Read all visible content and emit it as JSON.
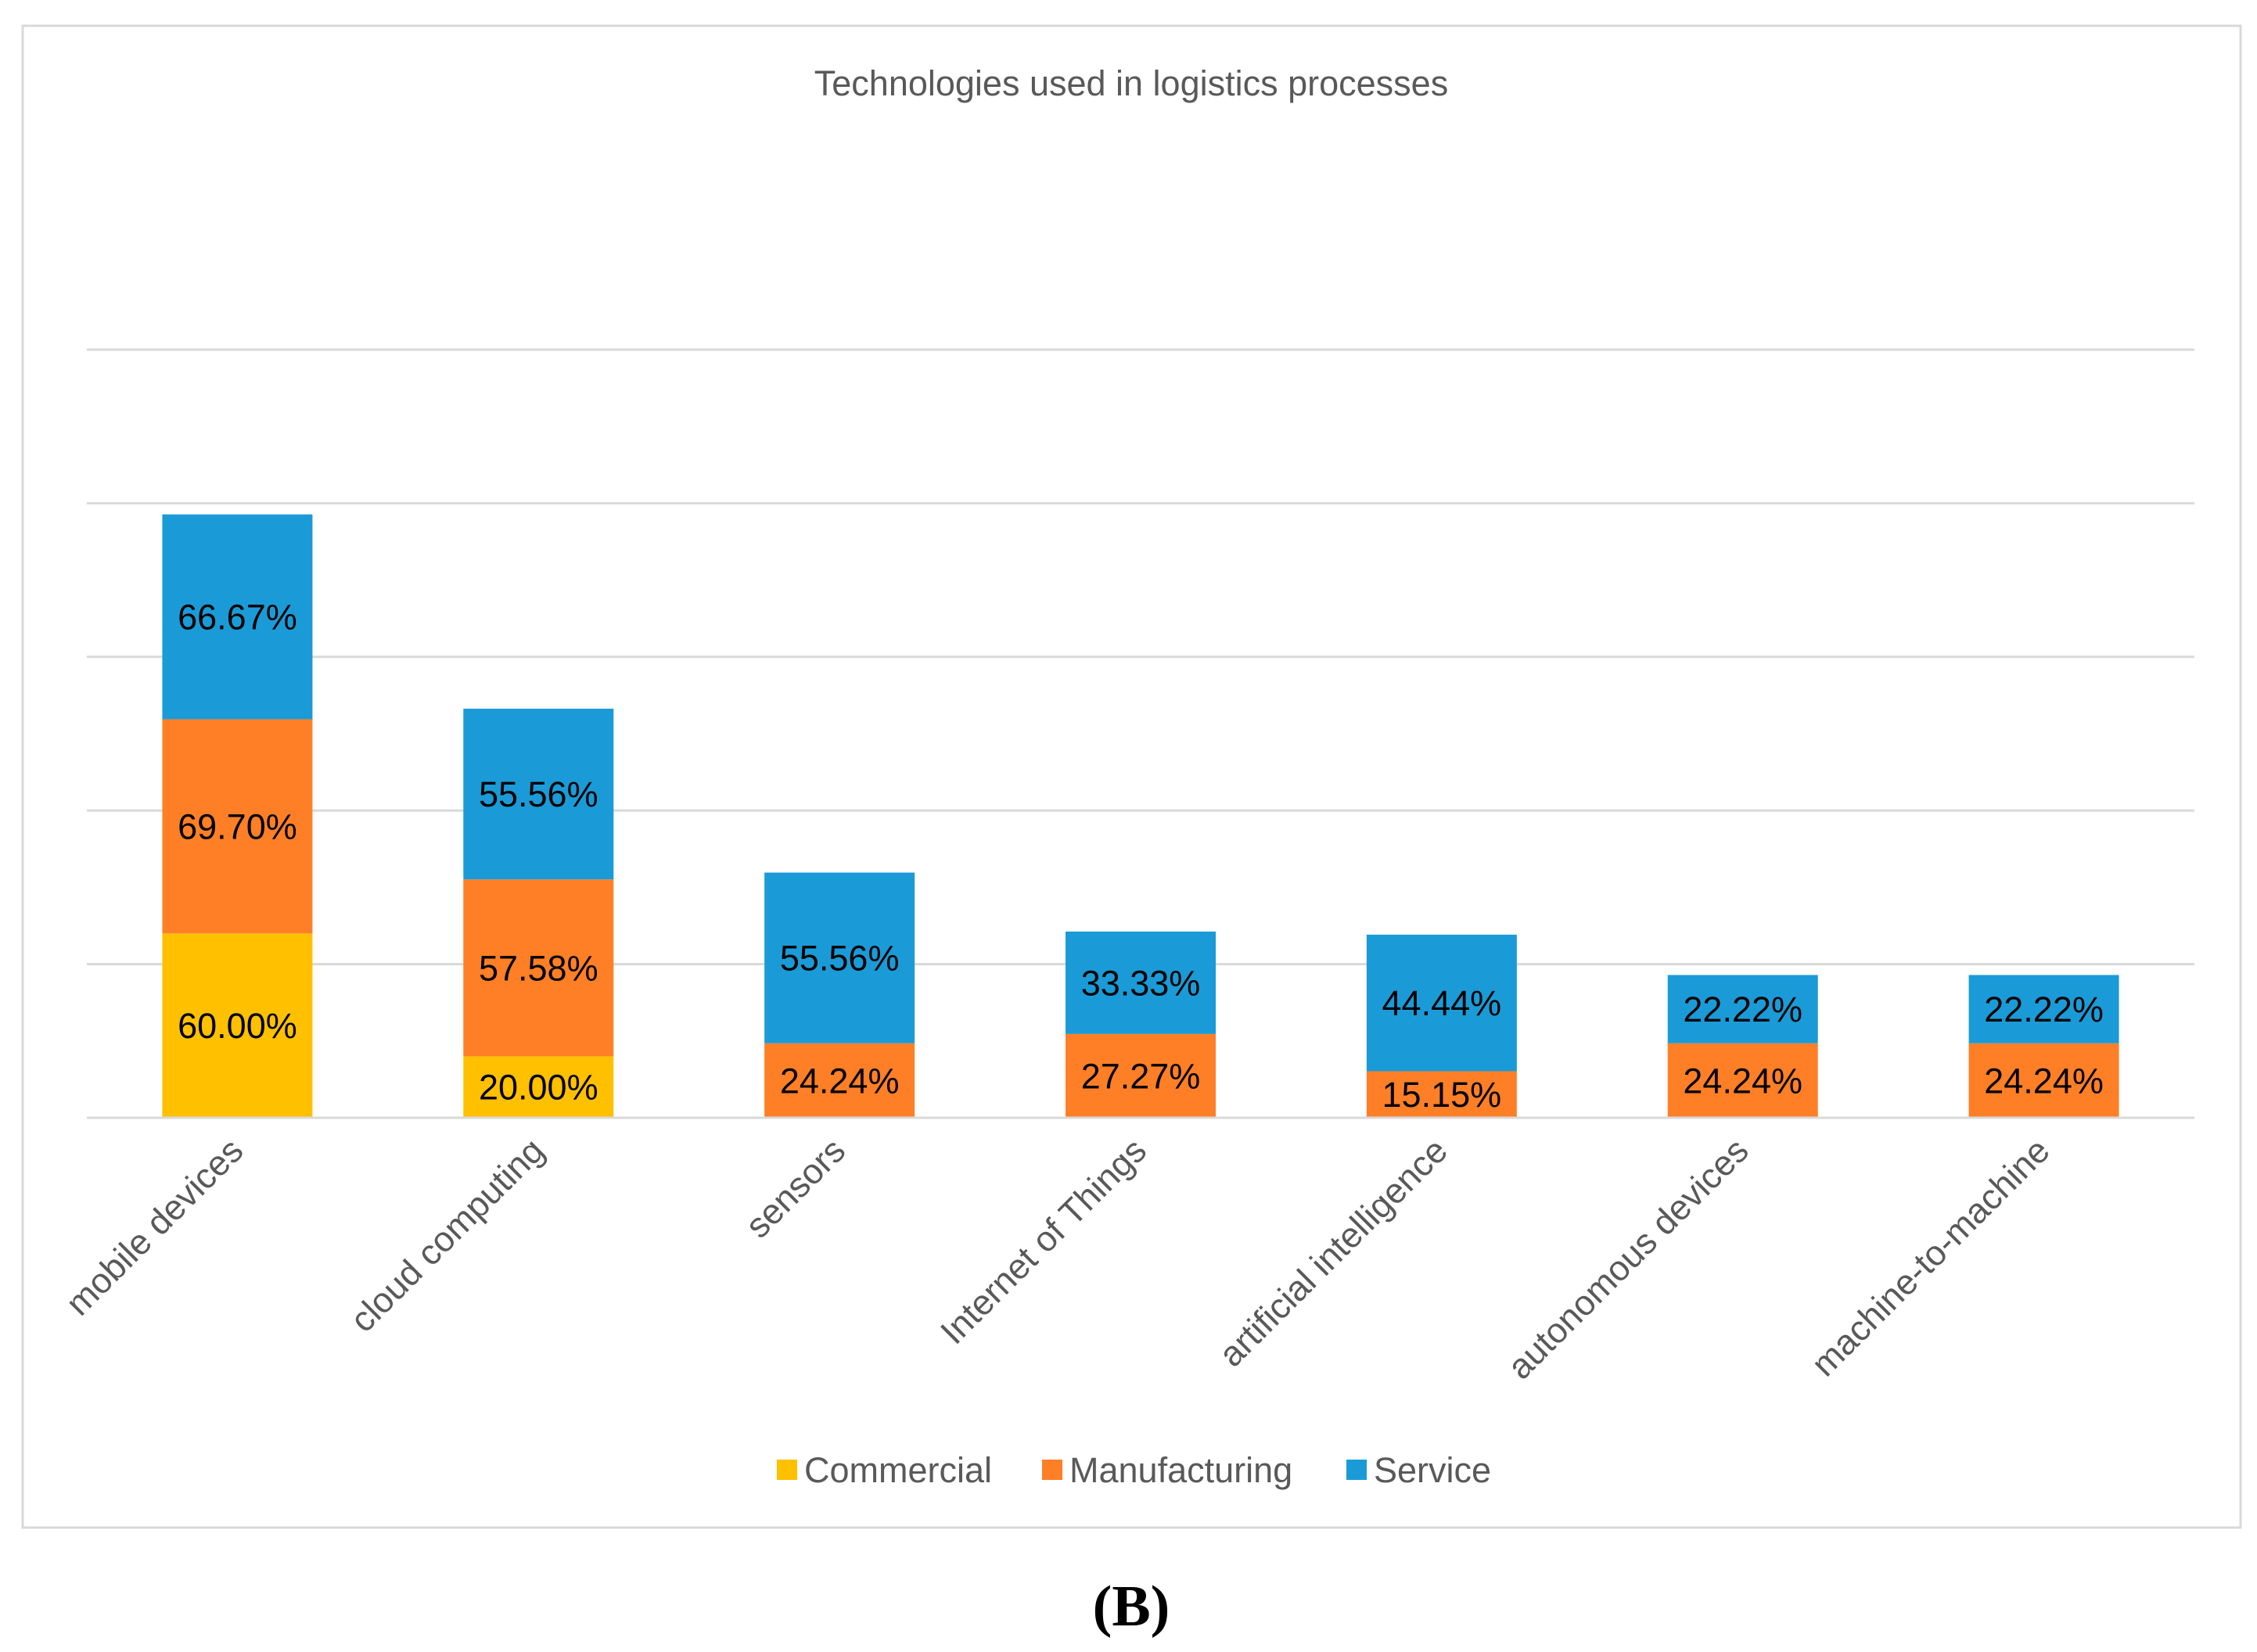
{
  "chart_data": {
    "type": "bar",
    "stacked": true,
    "title": "Technologies used in logistics processes",
    "categories": [
      "mobile devices",
      "cloud computing",
      "sensors",
      "Internet of Things",
      "artificial intelligence",
      "autonomous devices",
      "machine-to-machine"
    ],
    "series": [
      {
        "name": "Commercial",
        "color": "#FFC000",
        "values": [
          60.0,
          20.0,
          0,
          0,
          0,
          0,
          0
        ],
        "labels": [
          "60.00%",
          "20.00%",
          "",
          "",
          "",
          "",
          ""
        ]
      },
      {
        "name": "Manufacturing",
        "color": "#FF7F27",
        "values": [
          69.7,
          57.58,
          24.24,
          27.27,
          15.15,
          24.24,
          24.24
        ],
        "labels": [
          "69.70%",
          "57.58%",
          "24.24%",
          "27.27%",
          "15.15%",
          "24.24%",
          "24.24%"
        ]
      },
      {
        "name": "Service",
        "color": "#1A9BD7",
        "values": [
          66.67,
          55.56,
          55.56,
          33.33,
          44.44,
          22.22,
          22.22
        ],
        "labels": [
          "66.67%",
          "55.56%",
          "55.56%",
          "33.33%",
          "44.44%",
          "22.22%",
          "22.22%"
        ]
      }
    ],
    "ylim": [
      0,
      250
    ],
    "grid_step": 50,
    "grid": true,
    "xlabel": "",
    "ylabel": "",
    "legend": "bottom"
  },
  "caption": "(B)"
}
